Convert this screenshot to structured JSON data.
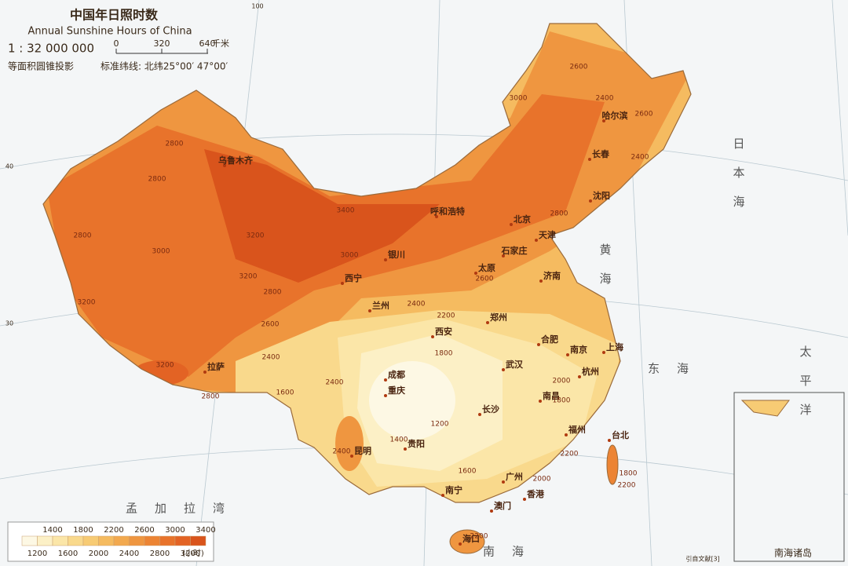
{
  "header": {
    "title": "中国年日照时数",
    "subtitle": "Annual Sunshine Hours of China",
    "scale": "1 : 32 000 000",
    "scale_bar": {
      "ticks": [
        0,
        320,
        640
      ],
      "unit": "千米"
    },
    "projection": "等面积圆锥投影",
    "standard_parallels": "标准纬线: 北纬25°00′ 47°00′"
  },
  "legend": {
    "upper_labels": [
      1400,
      1800,
      2200,
      2600,
      3000,
      3400
    ],
    "lower_labels": [
      1200,
      1600,
      2000,
      2400,
      2800,
      3200
    ],
    "unit": "(小时)",
    "colors": [
      "#fdf8e4",
      "#fcf0c6",
      "#fbe6a8",
      "#f9d98c",
      "#f7cb74",
      "#f5bb60",
      "#f2a94f",
      "#ef9640",
      "#ec8434",
      "#e8732b",
      "#e36324",
      "#d9541c"
    ]
  },
  "cities": [
    "乌鲁木齐",
    "呼和浩特",
    "北京",
    "天津",
    "石家庄",
    "银川",
    "西宁",
    "太原",
    "济南",
    "兰州",
    "郑州",
    "西安",
    "合肥",
    "南京",
    "上海",
    "拉萨",
    "成都",
    "重庆",
    "武汉",
    "杭州",
    "长沙",
    "南昌",
    "福州",
    "台北",
    "贵阳",
    "昆明",
    "南宁",
    "广州",
    "香港",
    "澳门",
    "海口",
    "哈尔滨",
    "长春",
    "沈阳"
  ],
  "seas": [
    "日本海",
    "黄海",
    "东海",
    "太平洋",
    "南海",
    "孟加拉湾"
  ],
  "contour_labels": [
    2800,
    2800,
    3000,
    2800,
    3200,
    3400,
    3000,
    3200,
    2800,
    2600,
    2400,
    3200,
    3200,
    2800,
    2400,
    2200,
    2600,
    2800,
    3000,
    2600,
    2400,
    2600,
    2400,
    2000,
    1800,
    1800,
    1200,
    1400,
    1600,
    1600,
    2400,
    2400,
    2000,
    2200,
    1800,
    2200,
    2200
  ],
  "graticule_labels": [
    "40",
    "30",
    "100"
  ],
  "inset_title": "南海诸岛",
  "source": "引自文献[3]"
}
